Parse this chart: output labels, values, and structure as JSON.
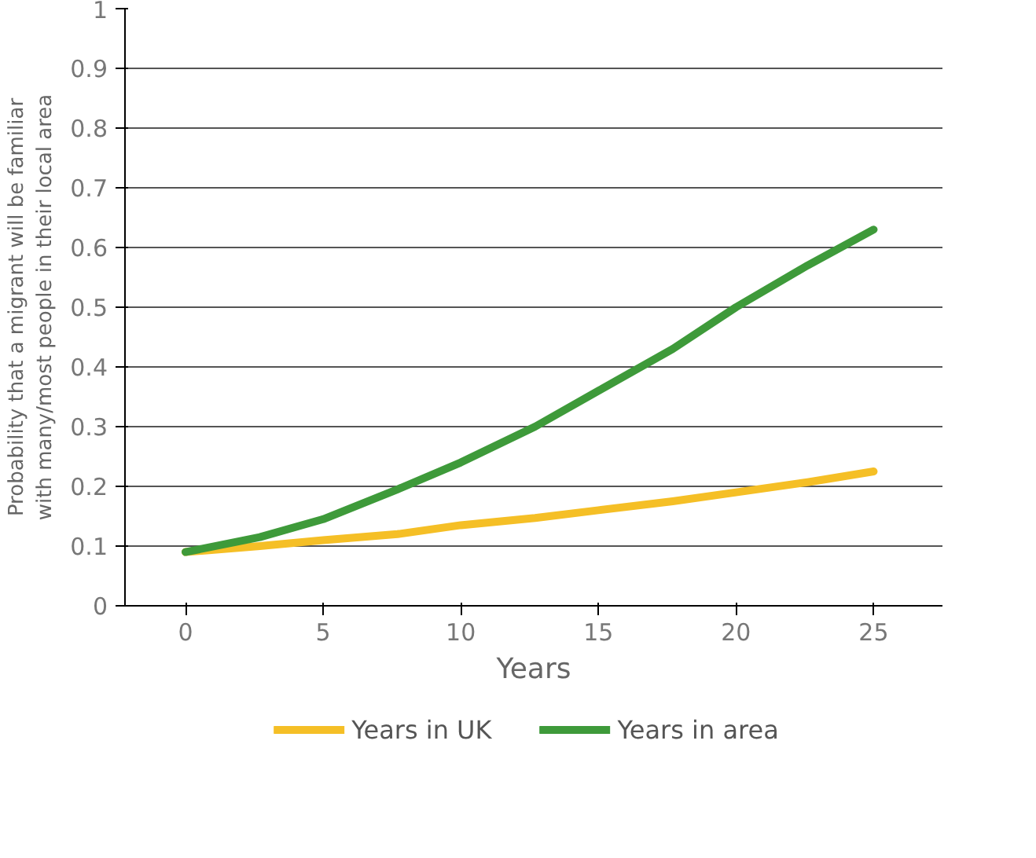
{
  "chart_data": {
    "type": "line",
    "xlabel": "Years",
    "ylabel": "Probability that a migrant will be familiar\nwith many/most people in their local area",
    "x": [
      0,
      2.7,
      5,
      7.7,
      10,
      12.7,
      15,
      17.7,
      20,
      22.6,
      25
    ],
    "series": [
      {
        "name": "Years in UK",
        "color": "#f5bf26",
        "values": [
          0.09,
          0.1,
          0.11,
          0.12,
          0.135,
          0.147,
          0.16,
          0.175,
          0.19,
          0.207,
          0.225
        ]
      },
      {
        "name": "Years in area",
        "color": "#3e9a3a",
        "values": [
          0.09,
          0.115,
          0.145,
          0.195,
          0.24,
          0.3,
          0.36,
          0.43,
          0.5,
          0.57,
          0.63
        ]
      }
    ],
    "xlim": [
      -2.2,
      27.5
    ],
    "ylim": [
      0,
      1
    ],
    "xticks": [
      0,
      5,
      10,
      15,
      20,
      25
    ],
    "yticks": [
      0,
      0.1,
      0.2,
      0.3,
      0.4,
      0.5,
      0.6,
      0.7,
      0.8,
      0.9,
      1
    ],
    "grid": "y",
    "legend": "bottom",
    "line_style": "solid"
  }
}
